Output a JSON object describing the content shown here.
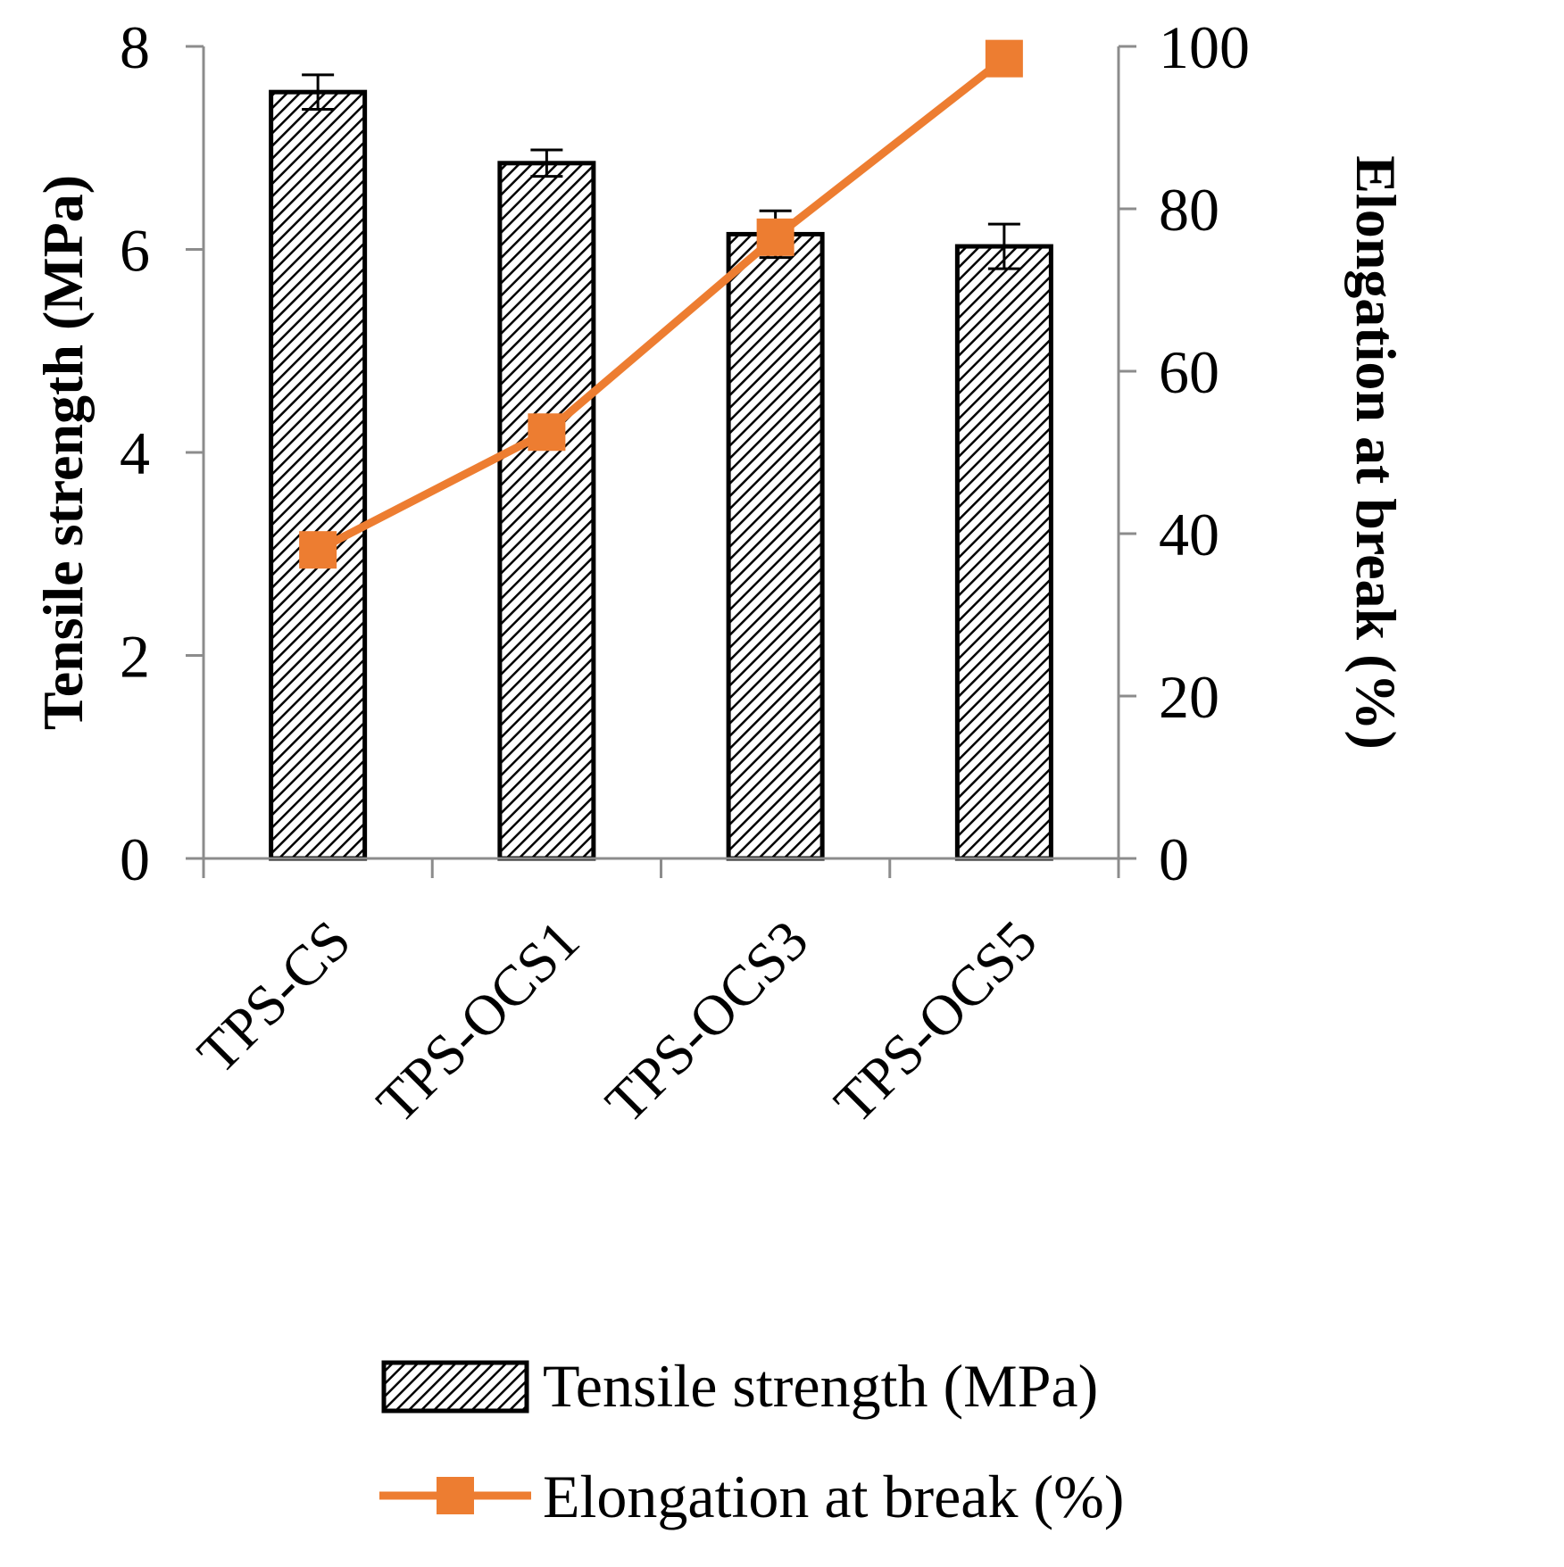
{
  "chart_data": {
    "type": "bar",
    "categories": [
      "TPS-CS",
      "TPS-OCS1",
      "TPS-OCS3",
      "TPS-OCS5"
    ],
    "series": [
      {
        "name": "Tensile strength (MPa)",
        "type": "bar",
        "axis": "left",
        "values": [
          7.55,
          6.85,
          6.15,
          6.03
        ],
        "errors": [
          0.17,
          0.13,
          0.23,
          0.22
        ]
      },
      {
        "name": "Elongation at break (%)",
        "type": "line",
        "axis": "right",
        "values": [
          38.0,
          52.5,
          76.5,
          98.5
        ],
        "color": "#ed7d31"
      }
    ],
    "ylabel": "Tensile strength (MPa)",
    "y2label": "Elongation at break (%)",
    "ylim": [
      0,
      8
    ],
    "yticks": [
      "0",
      "2",
      "4",
      "6",
      "8"
    ],
    "y2lim": [
      0,
      100
    ],
    "y2ticks": [
      "0",
      "20",
      "40",
      "60",
      "80",
      "100"
    ],
    "legend_position": "bottom",
    "grid": false
  }
}
